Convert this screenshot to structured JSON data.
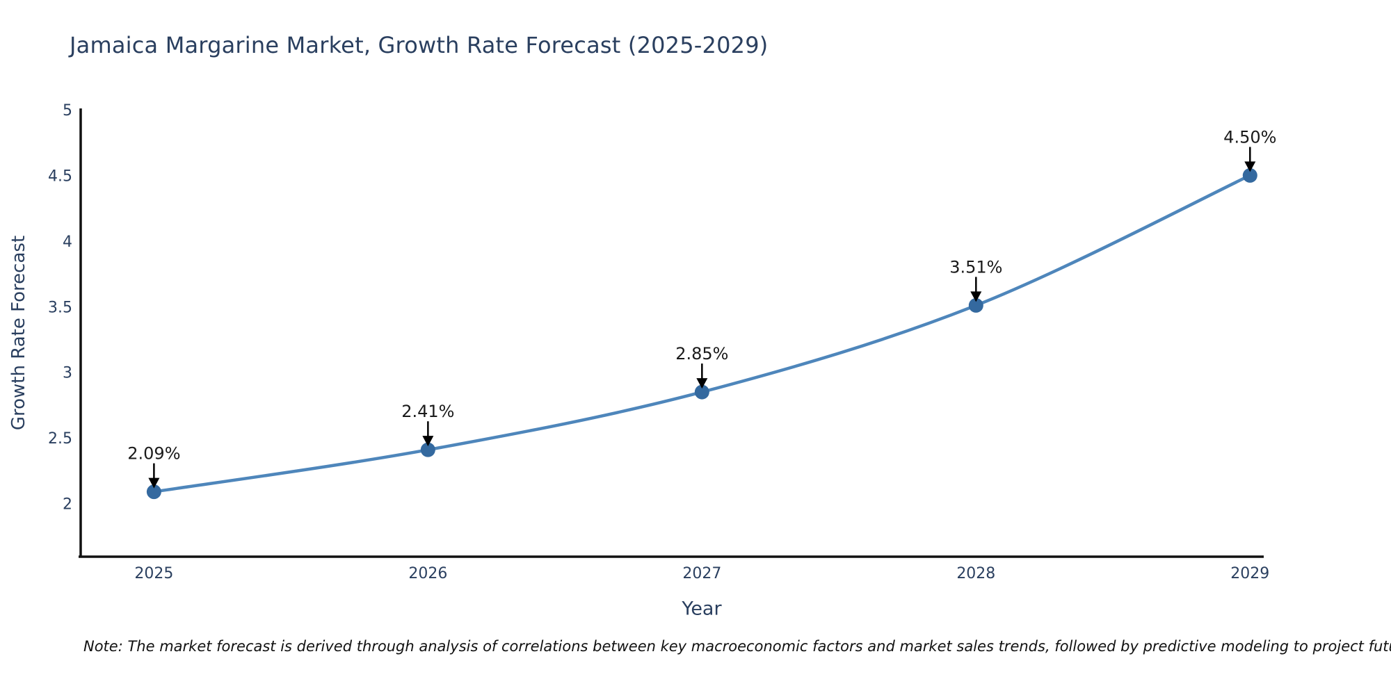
{
  "page": {
    "background": "#ffffff"
  },
  "header": {
    "title": "Jamaica Margarine Market, Growth Rate Forecast (2025-2029)"
  },
  "footnote": {
    "text": "Note: The market forecast is derived through analysis of correlations between key macroeconomic factors and market sales trends, followed by predictive modeling to project future sales"
  },
  "chart_data": {
    "type": "line",
    "title": "Jamaica Margarine Market, Growth Rate Forecast (2025-2029)",
    "xlabel": "Year",
    "ylabel": "Growth Rate Forecast",
    "categories": [
      2025,
      2026,
      2027,
      2028,
      2029
    ],
    "x_tick_labels": [
      "2025",
      "2026",
      "2027",
      "2028",
      "2029"
    ],
    "values": [
      2.09,
      2.41,
      2.85,
      3.51,
      4.5
    ],
    "point_labels": [
      "2.09%",
      "2.41%",
      "2.85%",
      "3.51%",
      "4.50%"
    ],
    "y_ticks": [
      2,
      2.5,
      3,
      3.5,
      4,
      4.5,
      5
    ],
    "y_tick_labels": [
      "2",
      "2.5",
      "3",
      "3.5",
      "4",
      "4.5",
      "5"
    ],
    "xlim": [
      2024.73,
      2029.05
    ],
    "ylim": [
      1.585,
      5.0
    ],
    "grid": "off",
    "legend": "none",
    "line_shape": "spline",
    "colors": {
      "line": "#4e86bb",
      "marker": "#34699f",
      "axis_line": "#111111",
      "tick_label": "#2a3f5f",
      "annotation_text": "#1a1a1a",
      "arrow": "#000000"
    }
  }
}
